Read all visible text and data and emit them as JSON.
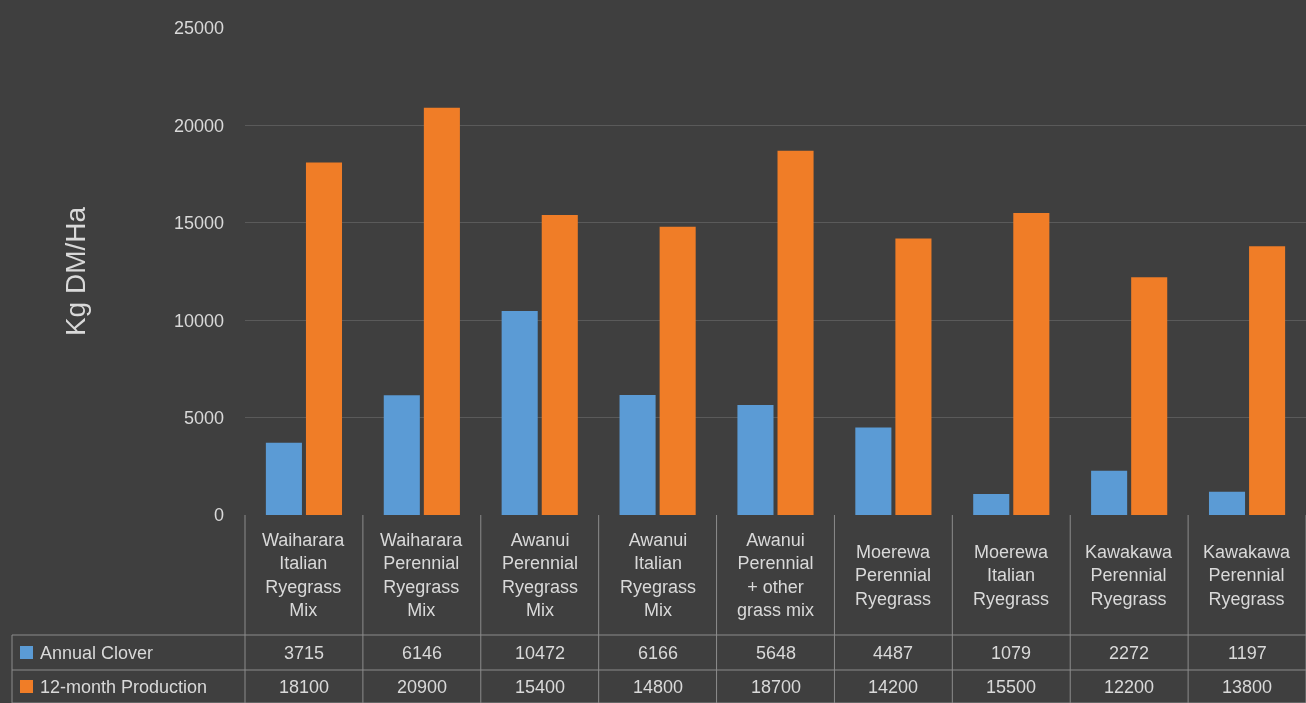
{
  "chart_data": {
    "type": "bar",
    "ylabel": "Kg DM/Ha",
    "categories": [
      "Waiharara Italian Ryegrass Mix",
      "Waiharara Perennial Ryegrass Mix",
      "Awanui Perennial Ryegrass Mix",
      "Awanui Italian Ryegrass Mix",
      "Awanui Perennial + other grass mix",
      "Moerewa Perennial Ryegrass",
      "Moerewa Italian Ryegrass",
      "Kawakawa Perennial Ryegrass",
      "Kawakawa Perennial Ryegrass"
    ],
    "series": [
      {
        "name": "Annual Clover",
        "color": "#5b9bd5",
        "values": [
          3715,
          6146,
          10472,
          6166,
          5648,
          4487,
          1079,
          2272,
          1197
        ]
      },
      {
        "name": "12-month Production",
        "color": "#f07d27",
        "values": [
          18100,
          20900,
          15400,
          14800,
          18700,
          14200,
          15500,
          12200,
          13800
        ]
      }
    ],
    "ylim": [
      0,
      25000
    ],
    "yticks": [
      0,
      5000,
      10000,
      15000,
      20000,
      25000
    ],
    "grid": "y",
    "legend": "bottom",
    "data_labels": true
  }
}
